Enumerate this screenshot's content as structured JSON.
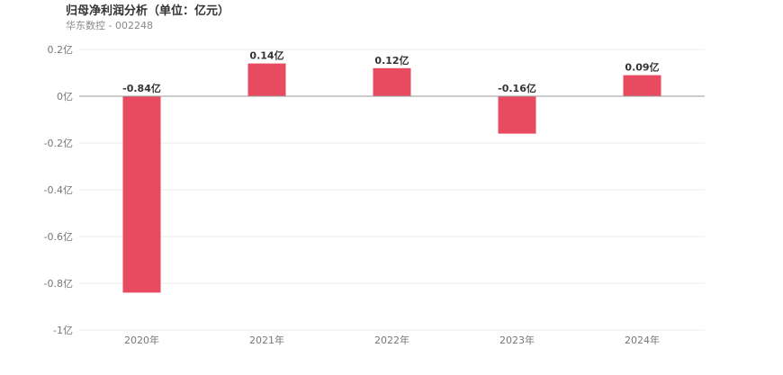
{
  "header": {
    "title": "归母净利润分析（单位：亿元）",
    "subtitle": "华东数控 - 002248"
  },
  "chart_data": {
    "type": "bar",
    "title": "归母净利润分析（单位：亿元）",
    "subtitle": "华东数控 - 002248",
    "categories": [
      "2020年",
      "2021年",
      "2022年",
      "2023年",
      "2024年"
    ],
    "values": [
      -0.84,
      0.14,
      0.12,
      -0.16,
      0.09
    ],
    "data_labels": [
      "-0.84亿",
      "0.14亿",
      "0.12亿",
      "-0.16亿",
      "0.09亿"
    ],
    "y_ticks": [
      0.2,
      0,
      -0.2,
      -0.4,
      -0.6,
      -0.8,
      -1
    ],
    "y_tick_labels": [
      "0.2亿",
      "0亿",
      "-0.2亿",
      "-0.4亿",
      "-0.6亿",
      "-0.8亿",
      "-1亿"
    ],
    "ylim": [
      -1,
      0.2
    ],
    "grid": true,
    "bar_color": "#e84a5f",
    "xlabel": "",
    "ylabel": ""
  }
}
